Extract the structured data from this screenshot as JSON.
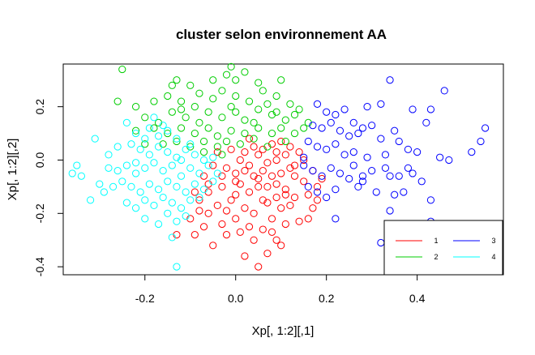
{
  "chart_data": {
    "type": "scatter",
    "title": "cluster selon environnement AA",
    "xlabel": "Xp[, 1:2][,1]",
    "ylabel": "Xp[, 1:2][,2]",
    "xlim": [
      -0.38,
      0.59
    ],
    "ylim": [
      -0.43,
      0.36
    ],
    "xticks": [
      -0.2,
      0.0,
      0.2,
      0.4
    ],
    "xtick_labels": [
      "-0.2",
      "0.0",
      "0.2",
      "0.4"
    ],
    "yticks": [
      -0.4,
      -0.2,
      0.0,
      0.2
    ],
    "ytick_labels": [
      "-0.4",
      "-0.2",
      "0.0",
      "0.2"
    ],
    "grid": false,
    "marker": "open-circle",
    "legend": {
      "position": "bottom-right",
      "entries": [
        {
          "label": "1",
          "color": "#ff0000"
        },
        {
          "label": "2",
          "color": "#00cd00"
        },
        {
          "label": "3",
          "color": "#0000ff"
        },
        {
          "label": "4",
          "color": "#00ffff"
        }
      ]
    },
    "series": [
      {
        "name": "1",
        "color": "#ff0000",
        "points": [
          [
            -0.13,
            -0.28
          ],
          [
            -0.09,
            -0.28
          ],
          [
            -0.05,
            -0.32
          ],
          [
            -0.02,
            -0.28
          ],
          [
            0.02,
            -0.36
          ],
          [
            0.05,
            -0.4
          ],
          [
            0.07,
            -0.35
          ],
          [
            0.09,
            -0.3
          ],
          [
            0.1,
            -0.32
          ],
          [
            0.01,
            -0.27
          ],
          [
            0.04,
            -0.3
          ],
          [
            -0.08,
            -0.19
          ],
          [
            -0.06,
            -0.2
          ],
          [
            -0.04,
            -0.17
          ],
          [
            -0.01,
            -0.15
          ],
          [
            0.02,
            -0.18
          ],
          [
            0.04,
            -0.2
          ],
          [
            0.06,
            -0.15
          ],
          [
            0.08,
            -0.22
          ],
          [
            0.1,
            -0.18
          ],
          [
            0.12,
            -0.17
          ],
          [
            0.14,
            -0.23
          ],
          [
            0.17,
            -0.18
          ],
          [
            0.16,
            -0.22
          ],
          [
            -0.03,
            -0.1
          ],
          [
            0.0,
            -0.08
          ],
          [
            0.03,
            -0.12
          ],
          [
            0.05,
            -0.07
          ],
          [
            0.07,
            -0.1
          ],
          [
            0.09,
            -0.09
          ],
          [
            0.11,
            -0.11
          ],
          [
            0.13,
            -0.06
          ],
          [
            0.15,
            -0.08
          ],
          [
            0.17,
            -0.04
          ],
          [
            0.18,
            -0.1
          ],
          [
            -0.05,
            -0.02
          ],
          [
            -0.02,
            -0.03
          ],
          [
            0.01,
            0.0
          ],
          [
            0.03,
            -0.02
          ],
          [
            0.05,
            0.02
          ],
          [
            0.07,
            -0.01
          ],
          [
            0.09,
            0.0
          ],
          [
            0.11,
            0.02
          ],
          [
            0.13,
            -0.02
          ],
          [
            0.15,
            0.0
          ],
          [
            -0.07,
            -0.06
          ],
          [
            -0.09,
            -0.12
          ],
          [
            -0.06,
            -0.12
          ],
          [
            0.0,
            -0.05
          ],
          [
            0.02,
            -0.04
          ],
          [
            0.04,
            -0.06
          ],
          [
            0.06,
            -0.04
          ],
          [
            0.08,
            -0.06
          ],
          [
            0.1,
            -0.05
          ],
          [
            0.12,
            -0.03
          ],
          [
            0.14,
            0.03
          ],
          [
            -0.04,
            0.03
          ],
          [
            -0.01,
            0.04
          ],
          [
            0.02,
            0.03
          ],
          [
            0.04,
            0.05
          ],
          [
            0.06,
            0.04
          ],
          [
            0.08,
            0.06
          ],
          [
            0.1,
            0.07
          ],
          [
            0.12,
            0.05
          ],
          [
            -0.1,
            -0.22
          ],
          [
            -0.07,
            -0.25
          ],
          [
            -0.03,
            -0.24
          ],
          [
            0.0,
            -0.22
          ],
          [
            0.03,
            -0.25
          ],
          [
            0.06,
            -0.26
          ],
          [
            0.08,
            -0.27
          ],
          [
            0.11,
            -0.24
          ],
          [
            0.13,
            -0.14
          ],
          [
            0.16,
            -0.13
          ],
          [
            0.18,
            -0.15
          ],
          [
            0.19,
            -0.07
          ],
          [
            0.07,
            -0.16
          ],
          [
            -0.02,
            -0.19
          ],
          [
            0.0,
            -0.13
          ],
          [
            0.05,
            -0.1
          ],
          [
            -0.06,
            -0.09
          ],
          [
            -0.08,
            -0.15
          ],
          [
            0.09,
            -0.14
          ],
          [
            0.11,
            -0.13
          ],
          [
            0.01,
            -0.09
          ],
          [
            -0.03,
            -0.06
          ],
          [
            0.03,
            0.08
          ],
          [
            0.09,
            0.03
          ]
        ]
      },
      {
        "name": "2",
        "color": "#00cd00",
        "points": [
          [
            -0.25,
            0.34
          ],
          [
            -0.14,
            0.28
          ],
          [
            -0.13,
            0.3
          ],
          [
            -0.05,
            0.3
          ],
          [
            -0.02,
            0.32
          ],
          [
            -0.01,
            0.35
          ],
          [
            0.0,
            0.3
          ],
          [
            0.02,
            0.33
          ],
          [
            0.1,
            0.3
          ],
          [
            -0.26,
            0.22
          ],
          [
            -0.22,
            0.2
          ],
          [
            -0.18,
            0.22
          ],
          [
            -0.15,
            0.24
          ],
          [
            -0.12,
            0.22
          ],
          [
            -0.08,
            0.25
          ],
          [
            -0.05,
            0.23
          ],
          [
            -0.03,
            0.26
          ],
          [
            0.0,
            0.24
          ],
          [
            0.03,
            0.22
          ],
          [
            0.06,
            0.26
          ],
          [
            0.09,
            0.24
          ],
          [
            0.12,
            0.21
          ],
          [
            0.14,
            0.19
          ],
          [
            -0.2,
            0.16
          ],
          [
            -0.17,
            0.14
          ],
          [
            -0.14,
            0.18
          ],
          [
            -0.11,
            0.16
          ],
          [
            -0.08,
            0.14
          ],
          [
            -0.06,
            0.18
          ],
          [
            -0.03,
            0.16
          ],
          [
            0.0,
            0.18
          ],
          [
            0.02,
            0.15
          ],
          [
            0.05,
            0.19
          ],
          [
            0.08,
            0.17
          ],
          [
            0.11,
            0.15
          ],
          [
            0.13,
            0.17
          ],
          [
            0.16,
            0.14
          ],
          [
            -0.22,
            0.11
          ],
          [
            -0.18,
            0.12
          ],
          [
            -0.15,
            0.1
          ],
          [
            -0.12,
            0.12
          ],
          [
            -0.09,
            0.1
          ],
          [
            -0.06,
            0.12
          ],
          [
            -0.04,
            0.09
          ],
          [
            -0.01,
            0.11
          ],
          [
            0.02,
            0.1
          ],
          [
            0.05,
            0.12
          ],
          [
            0.08,
            0.1
          ],
          [
            0.1,
            0.12
          ],
          [
            0.13,
            0.1
          ],
          [
            -0.16,
            0.06
          ],
          [
            -0.13,
            0.07
          ],
          [
            -0.1,
            0.05
          ],
          [
            -0.07,
            0.07
          ],
          [
            -0.04,
            0.05
          ],
          [
            -0.02,
            0.07
          ],
          [
            0.01,
            0.06
          ],
          [
            0.04,
            0.08
          ],
          [
            0.07,
            0.05
          ],
          [
            0.11,
            0.07
          ],
          [
            -0.09,
            0.2
          ],
          [
            -0.01,
            0.2
          ],
          [
            0.04,
            0.14
          ],
          [
            0.07,
            0.21
          ],
          [
            -0.2,
            0.06
          ],
          [
            0.09,
            0.18
          ],
          [
            -0.07,
            0.03
          ],
          [
            -0.03,
            0.02
          ],
          [
            0.15,
            0.12
          ],
          [
            -0.12,
            0.19
          ],
          [
            0.05,
            0.29
          ],
          [
            -0.1,
            0.28
          ]
        ]
      },
      {
        "name": "3",
        "color": "#0000ff",
        "points": [
          [
            0.34,
            0.3
          ],
          [
            0.29,
            0.2
          ],
          [
            0.32,
            0.21
          ],
          [
            0.39,
            0.19
          ],
          [
            0.42,
            0.14
          ],
          [
            0.43,
            0.19
          ],
          [
            0.46,
            0.26
          ],
          [
            0.55,
            0.12
          ],
          [
            0.18,
            0.21
          ],
          [
            0.2,
            0.18
          ],
          [
            0.22,
            0.17
          ],
          [
            0.24,
            0.19
          ],
          [
            0.26,
            0.14
          ],
          [
            0.28,
            0.12
          ],
          [
            0.3,
            0.13
          ],
          [
            0.35,
            0.11
          ],
          [
            0.17,
            0.13
          ],
          [
            0.19,
            0.12
          ],
          [
            0.21,
            0.14
          ],
          [
            0.23,
            0.11
          ],
          [
            0.25,
            0.09
          ],
          [
            0.27,
            0.1
          ],
          [
            0.32,
            0.08
          ],
          [
            0.36,
            0.07
          ],
          [
            0.16,
            0.07
          ],
          [
            0.18,
            0.05
          ],
          [
            0.2,
            0.04
          ],
          [
            0.22,
            0.06
          ],
          [
            0.24,
            0.02
          ],
          [
            0.26,
            0.03
          ],
          [
            0.29,
            0.01
          ],
          [
            0.33,
            0.02
          ],
          [
            0.38,
            0.04
          ],
          [
            0.4,
            0.03
          ],
          [
            0.45,
            0.01
          ],
          [
            0.52,
            0.03
          ],
          [
            0.54,
            0.07
          ],
          [
            0.15,
            -0.02
          ],
          [
            0.17,
            -0.04
          ],
          [
            0.19,
            -0.06
          ],
          [
            0.21,
            -0.03
          ],
          [
            0.23,
            -0.05
          ],
          [
            0.25,
            -0.07
          ],
          [
            0.28,
            -0.06
          ],
          [
            0.3,
            -0.04
          ],
          [
            0.33,
            -0.03
          ],
          [
            0.36,
            -0.06
          ],
          [
            0.39,
            -0.05
          ],
          [
            0.41,
            -0.08
          ],
          [
            0.16,
            -0.1
          ],
          [
            0.18,
            -0.12
          ],
          [
            0.2,
            -0.14
          ],
          [
            0.22,
            -0.11
          ],
          [
            0.27,
            -0.1
          ],
          [
            0.31,
            -0.12
          ],
          [
            0.35,
            -0.13
          ],
          [
            0.37,
            -0.12
          ],
          [
            0.22,
            -0.22
          ],
          [
            0.43,
            -0.15
          ],
          [
            0.43,
            -0.23
          ],
          [
            0.34,
            -0.19
          ],
          [
            0.32,
            -0.31
          ],
          [
            0.34,
            -0.06
          ],
          [
            0.38,
            -0.03
          ],
          [
            0.28,
            -0.08
          ],
          [
            0.15,
            0.01
          ],
          [
            0.26,
            -0.02
          ],
          [
            0.47,
            0.0
          ]
        ]
      },
      {
        "name": "4",
        "color": "#00ffff",
        "points": [
          [
            -0.35,
            -0.02
          ],
          [
            -0.36,
            -0.05
          ],
          [
            -0.34,
            -0.06
          ],
          [
            -0.32,
            -0.15
          ],
          [
            -0.29,
            -0.12
          ],
          [
            -0.31,
            0.08
          ],
          [
            -0.28,
            0.02
          ],
          [
            -0.26,
            0.05
          ],
          [
            -0.24,
            0.14
          ],
          [
            -0.22,
            0.1
          ],
          [
            -0.2,
            0.08
          ],
          [
            -0.19,
            0.12
          ],
          [
            -0.17,
            0.09
          ],
          [
            -0.15,
            0.11
          ],
          [
            -0.13,
            0.08
          ],
          [
            -0.26,
            -0.04
          ],
          [
            -0.24,
            -0.02
          ],
          [
            -0.22,
            -0.05
          ],
          [
            -0.2,
            -0.03
          ],
          [
            -0.18,
            -0.01
          ],
          [
            -0.16,
            -0.04
          ],
          [
            -0.14,
            -0.02
          ],
          [
            -0.12,
            0.0
          ],
          [
            -0.1,
            -0.03
          ],
          [
            -0.08,
            -0.05
          ],
          [
            -0.06,
            -0.02
          ],
          [
            -0.25,
            -0.08
          ],
          [
            -0.23,
            -0.1
          ],
          [
            -0.21,
            -0.12
          ],
          [
            -0.19,
            -0.09
          ],
          [
            -0.17,
            -0.11
          ],
          [
            -0.15,
            -0.08
          ],
          [
            -0.13,
            -0.1
          ],
          [
            -0.11,
            -0.12
          ],
          [
            -0.09,
            -0.09
          ],
          [
            -0.07,
            -0.11
          ],
          [
            -0.05,
            -0.08
          ],
          [
            -0.24,
            -0.16
          ],
          [
            -0.22,
            -0.18
          ],
          [
            -0.2,
            -0.15
          ],
          [
            -0.18,
            -0.17
          ],
          [
            -0.16,
            -0.14
          ],
          [
            -0.14,
            -0.16
          ],
          [
            -0.12,
            -0.18
          ],
          [
            -0.1,
            -0.15
          ],
          [
            -0.08,
            -0.14
          ],
          [
            -0.2,
            -0.22
          ],
          [
            -0.17,
            -0.24
          ],
          [
            -0.15,
            -0.2
          ],
          [
            -0.13,
            -0.23
          ],
          [
            -0.11,
            -0.21
          ],
          [
            -0.14,
            -0.29
          ],
          [
            -0.13,
            -0.4
          ],
          [
            -0.21,
            0.04
          ],
          [
            -0.19,
            0.02
          ],
          [
            -0.17,
            0.05
          ],
          [
            -0.15,
            0.03
          ],
          [
            -0.13,
            0.01
          ],
          [
            -0.11,
            0.04
          ],
          [
            -0.09,
            0.02
          ],
          [
            -0.07,
            0.0
          ],
          [
            -0.05,
            0.01
          ],
          [
            -0.23,
            0.06
          ],
          [
            -0.18,
            0.16
          ],
          [
            -0.16,
            0.13
          ],
          [
            -0.27,
            -0.1
          ],
          [
            -0.3,
            -0.09
          ],
          [
            -0.28,
            -0.03
          ],
          [
            -0.04,
            -0.05
          ],
          [
            -0.1,
            0.06
          ],
          [
            -0.12,
            -0.06
          ],
          [
            -0.22,
            -0.01
          ]
        ]
      }
    ]
  }
}
